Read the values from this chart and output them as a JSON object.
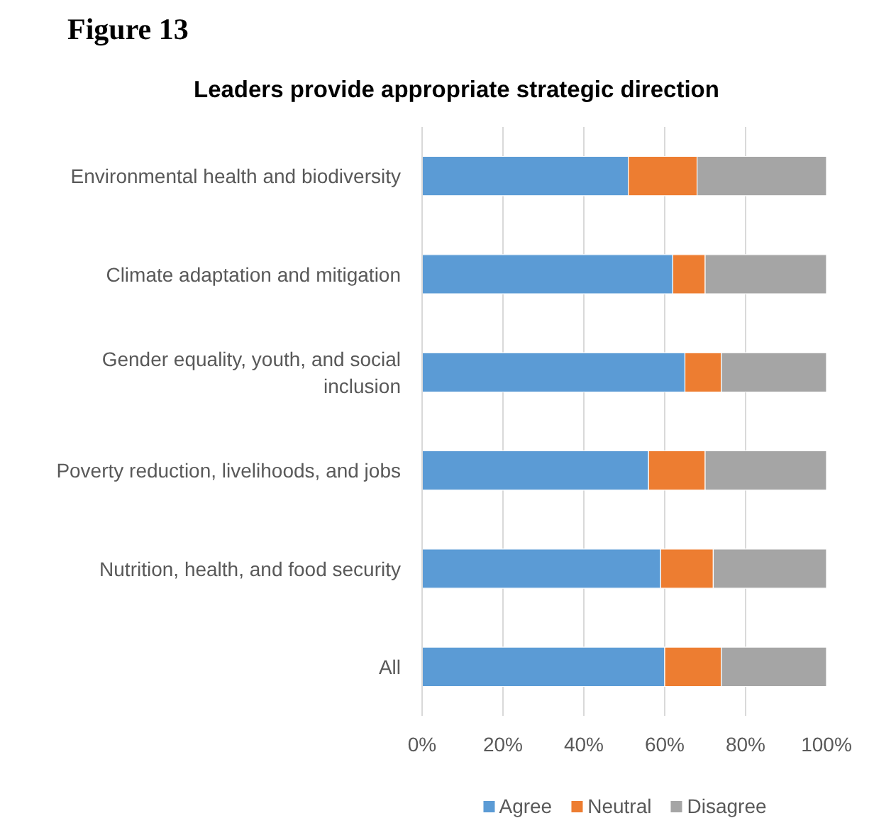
{
  "chart_data": {
    "type": "bar",
    "orientation": "horizontal",
    "stacked": true,
    "title": "Leaders provide appropriate strategic direction",
    "annotations": [
      "Figure 13"
    ],
    "categories": [
      "Environmental health and biodiversity",
      "Climate adaptation and mitigation",
      "Gender equality, youth, and social inclusion",
      "Poverty reduction, livelihoods, and jobs",
      "Nutrition, health, and food security",
      "All"
    ],
    "series": [
      {
        "name": "Agree",
        "color": "#5b9bd5",
        "values": [
          51,
          62,
          65,
          56,
          59,
          60
        ]
      },
      {
        "name": "Neutral",
        "color": "#ed7d31",
        "values": [
          17,
          8,
          9,
          14,
          13,
          14
        ]
      },
      {
        "name": "Disagree",
        "color": "#a5a5a5",
        "values": [
          32,
          30,
          26,
          30,
          28,
          26
        ]
      }
    ],
    "xlim": [
      0,
      100
    ],
    "xticks": [
      {
        "value": 0,
        "label": "0%"
      },
      {
        "value": 20,
        "label": "20%"
      },
      {
        "value": 40,
        "label": "40%"
      },
      {
        "value": 60,
        "label": "60%"
      },
      {
        "value": 80,
        "label": "80%"
      },
      {
        "value": 100,
        "label": "100%"
      }
    ],
    "grid": "x",
    "legend": "bottom"
  }
}
